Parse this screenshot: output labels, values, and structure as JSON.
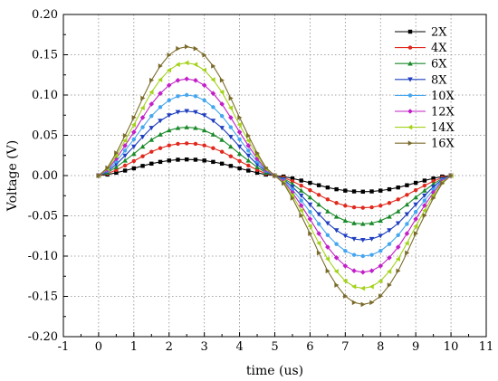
{
  "chart_data": {
    "type": "line",
    "xlabel": "time (us)",
    "ylabel": "Voltage (V)",
    "xlim": [
      -1,
      11
    ],
    "ylim": [
      -0.2,
      0.2
    ],
    "x_ticks": [
      "-1",
      "0",
      "1",
      "2",
      "3",
      "4",
      "5",
      "6",
      "7",
      "8",
      "9",
      "10",
      "11"
    ],
    "y_ticks": [
      "0.20",
      "0.15",
      "0.10",
      "0.05",
      "0.00",
      "-0.05",
      "-0.10",
      "-0.15",
      "-0.20"
    ],
    "grid": true,
    "legend_position": "top-right",
    "x": [
      0,
      0.25,
      0.5,
      0.75,
      1,
      1.25,
      1.5,
      1.75,
      2,
      2.25,
      2.5,
      2.75,
      3,
      3.25,
      3.5,
      3.75,
      4,
      4.25,
      4.5,
      4.75,
      5,
      5.25,
      5.5,
      5.75,
      6,
      6.25,
      6.5,
      6.75,
      7,
      7.25,
      7.5,
      7.75,
      8,
      8.25,
      8.5,
      8.75,
      9,
      9.25,
      9.5,
      9.75,
      10
    ],
    "series": [
      {
        "name": "2X",
        "color": "#000000",
        "marker": "square",
        "amplitude": 0.02,
        "values": [
          0,
          0.0012,
          0.0035,
          0.0062,
          0.009,
          0.012,
          0.0148,
          0.017,
          0.0187,
          0.0197,
          0.02,
          0.0197,
          0.0187,
          0.017,
          0.0148,
          0.012,
          0.009,
          0.0062,
          0.0035,
          0.0012,
          0,
          -0.0012,
          -0.0035,
          -0.0062,
          -0.009,
          -0.012,
          -0.0148,
          -0.017,
          -0.0187,
          -0.0197,
          -0.02,
          -0.0197,
          -0.0187,
          -0.017,
          -0.0148,
          -0.012,
          -0.009,
          -0.0062,
          -0.0035,
          -0.0012,
          0
        ]
      },
      {
        "name": "4X",
        "color": "#e0281c",
        "marker": "circle",
        "amplitude": 0.04,
        "values": [
          0,
          0.0024,
          0.007,
          0.0124,
          0.018,
          0.024,
          0.0296,
          0.034,
          0.0374,
          0.0394,
          0.04,
          0.0394,
          0.0374,
          0.034,
          0.0296,
          0.024,
          0.018,
          0.0124,
          0.007,
          0.0024,
          0,
          -0.0024,
          -0.007,
          -0.0124,
          -0.018,
          -0.024,
          -0.0296,
          -0.034,
          -0.0374,
          -0.0394,
          -0.04,
          -0.0394,
          -0.0374,
          -0.034,
          -0.0296,
          -0.024,
          -0.018,
          -0.0124,
          -0.007,
          -0.0024,
          0
        ]
      },
      {
        "name": "6X",
        "color": "#1a8a2a",
        "marker": "triangle-up",
        "amplitude": 0.06,
        "values": [
          0,
          0.0036,
          0.0105,
          0.0186,
          0.027,
          0.036,
          0.0444,
          0.051,
          0.0561,
          0.0591,
          0.06,
          0.0591,
          0.0561,
          0.051,
          0.0444,
          0.036,
          0.027,
          0.0186,
          0.0105,
          0.0036,
          0,
          -0.0036,
          -0.0105,
          -0.0186,
          -0.027,
          -0.036,
          -0.0444,
          -0.051,
          -0.0561,
          -0.0591,
          -0.06,
          -0.0591,
          -0.0561,
          -0.051,
          -0.0444,
          -0.036,
          -0.027,
          -0.0186,
          -0.0105,
          -0.0036,
          0
        ]
      },
      {
        "name": "8X",
        "color": "#1f3fbf",
        "marker": "triangle-down",
        "amplitude": 0.08,
        "values": [
          0,
          0.0048,
          0.014,
          0.0248,
          0.036,
          0.048,
          0.0592,
          0.068,
          0.0748,
          0.0788,
          0.08,
          0.0788,
          0.0748,
          0.068,
          0.0592,
          0.048,
          0.036,
          0.0248,
          0.014,
          0.0048,
          0,
          -0.0048,
          -0.014,
          -0.0248,
          -0.036,
          -0.048,
          -0.0592,
          -0.068,
          -0.0748,
          -0.0788,
          -0.08,
          -0.0788,
          -0.0748,
          -0.068,
          -0.0592,
          -0.048,
          -0.036,
          -0.0248,
          -0.014,
          -0.0048,
          0
        ]
      },
      {
        "name": "10X",
        "color": "#44a6f0",
        "marker": "circle",
        "amplitude": 0.1,
        "values": [
          0,
          0.006,
          0.0175,
          0.031,
          0.045,
          0.06,
          0.074,
          0.085,
          0.0935,
          0.0985,
          0.1,
          0.0985,
          0.0935,
          0.085,
          0.074,
          0.06,
          0.045,
          0.031,
          0.0175,
          0.006,
          0,
          -0.006,
          -0.0175,
          -0.031,
          -0.045,
          -0.06,
          -0.074,
          -0.085,
          -0.0935,
          -0.0985,
          -0.1,
          -0.0985,
          -0.0935,
          -0.085,
          -0.074,
          -0.06,
          -0.045,
          -0.031,
          -0.0175,
          -0.006,
          0
        ]
      },
      {
        "name": "12X",
        "color": "#c21fc7",
        "marker": "diamond",
        "amplitude": 0.12,
        "values": [
          0,
          0.0072,
          0.021,
          0.0372,
          0.054,
          0.072,
          0.0888,
          0.102,
          0.1122,
          0.1182,
          0.12,
          0.1182,
          0.1122,
          0.102,
          0.0888,
          0.072,
          0.054,
          0.0372,
          0.021,
          0.0072,
          0,
          -0.0072,
          -0.021,
          -0.0372,
          -0.054,
          -0.072,
          -0.0888,
          -0.102,
          -0.1122,
          -0.1182,
          -0.12,
          -0.1182,
          -0.1122,
          -0.102,
          -0.0888,
          -0.072,
          -0.054,
          -0.0372,
          -0.021,
          -0.0072,
          0
        ]
      },
      {
        "name": "14X",
        "color": "#a3d21a",
        "marker": "triangle-left",
        "amplitude": 0.14,
        "values": [
          0,
          0.0084,
          0.0245,
          0.0434,
          0.063,
          0.084,
          0.1036,
          0.119,
          0.1309,
          0.1379,
          0.14,
          0.1379,
          0.1309,
          0.119,
          0.1036,
          0.084,
          0.063,
          0.0434,
          0.0245,
          0.0084,
          0,
          -0.0084,
          -0.0245,
          -0.0434,
          -0.063,
          -0.084,
          -0.1036,
          -0.119,
          -0.1309,
          -0.1379,
          -0.14,
          -0.1379,
          -0.1309,
          -0.119,
          -0.1036,
          -0.084,
          -0.063,
          -0.0434,
          -0.0245,
          -0.0084,
          0
        ]
      },
      {
        "name": "16X",
        "color": "#7a6a2a",
        "marker": "triangle-right",
        "amplitude": 0.16,
        "values": [
          0,
          0.0096,
          0.028,
          0.0496,
          0.072,
          0.096,
          0.1184,
          0.136,
          0.1496,
          0.1576,
          0.16,
          0.1576,
          0.1496,
          0.136,
          0.1184,
          0.096,
          0.072,
          0.0496,
          0.028,
          0.0096,
          0,
          -0.0096,
          -0.028,
          -0.0496,
          -0.072,
          -0.096,
          -0.1184,
          -0.136,
          -0.1496,
          -0.1576,
          -0.16,
          -0.1576,
          -0.1496,
          -0.136,
          -0.1184,
          -0.096,
          -0.072,
          -0.0496,
          -0.028,
          -0.0096,
          0
        ]
      }
    ]
  }
}
